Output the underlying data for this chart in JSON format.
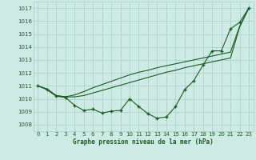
{
  "title": "Graphe pression niveau de la mer (hPa)",
  "bg_color": "#cdeae4",
  "grid_color": "#a8cdc8",
  "line_color": "#1a5c20",
  "marker_color": "#1a5c20",
  "ylim": [
    1007.5,
    1017.5
  ],
  "xlim": [
    -0.5,
    23.5
  ],
  "yticks": [
    1008,
    1009,
    1010,
    1011,
    1012,
    1013,
    1014,
    1015,
    1016,
    1017
  ],
  "xticks": [
    0,
    1,
    2,
    3,
    4,
    5,
    6,
    7,
    8,
    9,
    10,
    11,
    12,
    13,
    14,
    15,
    16,
    17,
    18,
    19,
    20,
    21,
    22,
    23
  ],
  "main_line": [
    1011.0,
    1010.7,
    1010.2,
    1010.1,
    1009.5,
    1009.1,
    1009.2,
    1008.9,
    1009.05,
    1009.1,
    1010.0,
    1009.4,
    1008.85,
    1008.5,
    1008.6,
    1009.4,
    1010.7,
    1011.4,
    1012.6,
    1013.7,
    1013.7,
    1015.4,
    1015.9,
    1017.0
  ],
  "line2": [
    1011.0,
    1010.75,
    1010.25,
    1010.15,
    1010.3,
    1010.55,
    1010.85,
    1011.1,
    1011.35,
    1011.6,
    1011.85,
    1012.05,
    1012.2,
    1012.4,
    1012.55,
    1012.7,
    1012.85,
    1013.0,
    1013.15,
    1013.3,
    1013.45,
    1013.6,
    1015.6,
    1017.0
  ],
  "line3": [
    1011.0,
    1010.75,
    1010.25,
    1010.15,
    1010.15,
    1010.25,
    1010.45,
    1010.65,
    1010.85,
    1011.05,
    1011.25,
    1011.45,
    1011.65,
    1011.85,
    1012.05,
    1012.2,
    1012.4,
    1012.55,
    1012.7,
    1012.85,
    1013.0,
    1013.15,
    1015.55,
    1017.0
  ]
}
